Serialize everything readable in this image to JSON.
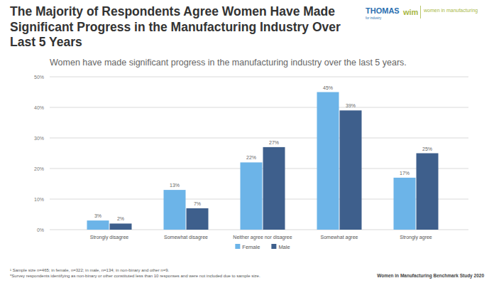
{
  "chart_data": {
    "type": "bar",
    "title": "The Majority of Respondents Agree Women Have Made Significant Progress in the Manufacturing Industry Over Last 5 Years",
    "subtitle": "Women have made significant progress in the manufacturing industry over the last 5 years.",
    "categories": [
      "Strongly disagree",
      "Somewhat disagree",
      "Neither agree nor disagree",
      "Somewhat agree",
      "Strongly agree"
    ],
    "series": [
      {
        "name": "Female",
        "color": "#6cb4e8",
        "values": [
          3,
          13,
          22,
          45,
          17
        ],
        "value_labels": [
          "3%",
          "13%",
          "22%",
          "45%",
          "17%"
        ]
      },
      {
        "name": "Male",
        "color": "#3e5f8c",
        "values": [
          2,
          7,
          27,
          39,
          25
        ],
        "value_labels": [
          "2%",
          "7%",
          "27%",
          "39%",
          "25%"
        ]
      }
    ],
    "ylim": [
      0,
      50
    ],
    "yticks": [
      {
        "value": 0,
        "label": "0%"
      },
      {
        "value": 10,
        "label": "10%"
      },
      {
        "value": 20,
        "label": "20%"
      },
      {
        "value": 30,
        "label": "30%"
      },
      {
        "value": 40,
        "label": "40%"
      },
      {
        "value": 50,
        "label": "50%"
      }
    ],
    "grid": true,
    "legend": "bottom",
    "data_labels": true,
    "footnotes": [
      "¹ Sample size n=465; in female, n=322; in male, n=134; in non-binary and other n=9.",
      "*Survey respondents identifying as non-binary or other constituted less than 10 responses and were not included due to sample size."
    ],
    "source": "Women in Manufacturing Benchmark Study 2020",
    "logos": [
      "THOMAS",
      "for industry",
      "wim",
      "women in manufacturing"
    ]
  }
}
